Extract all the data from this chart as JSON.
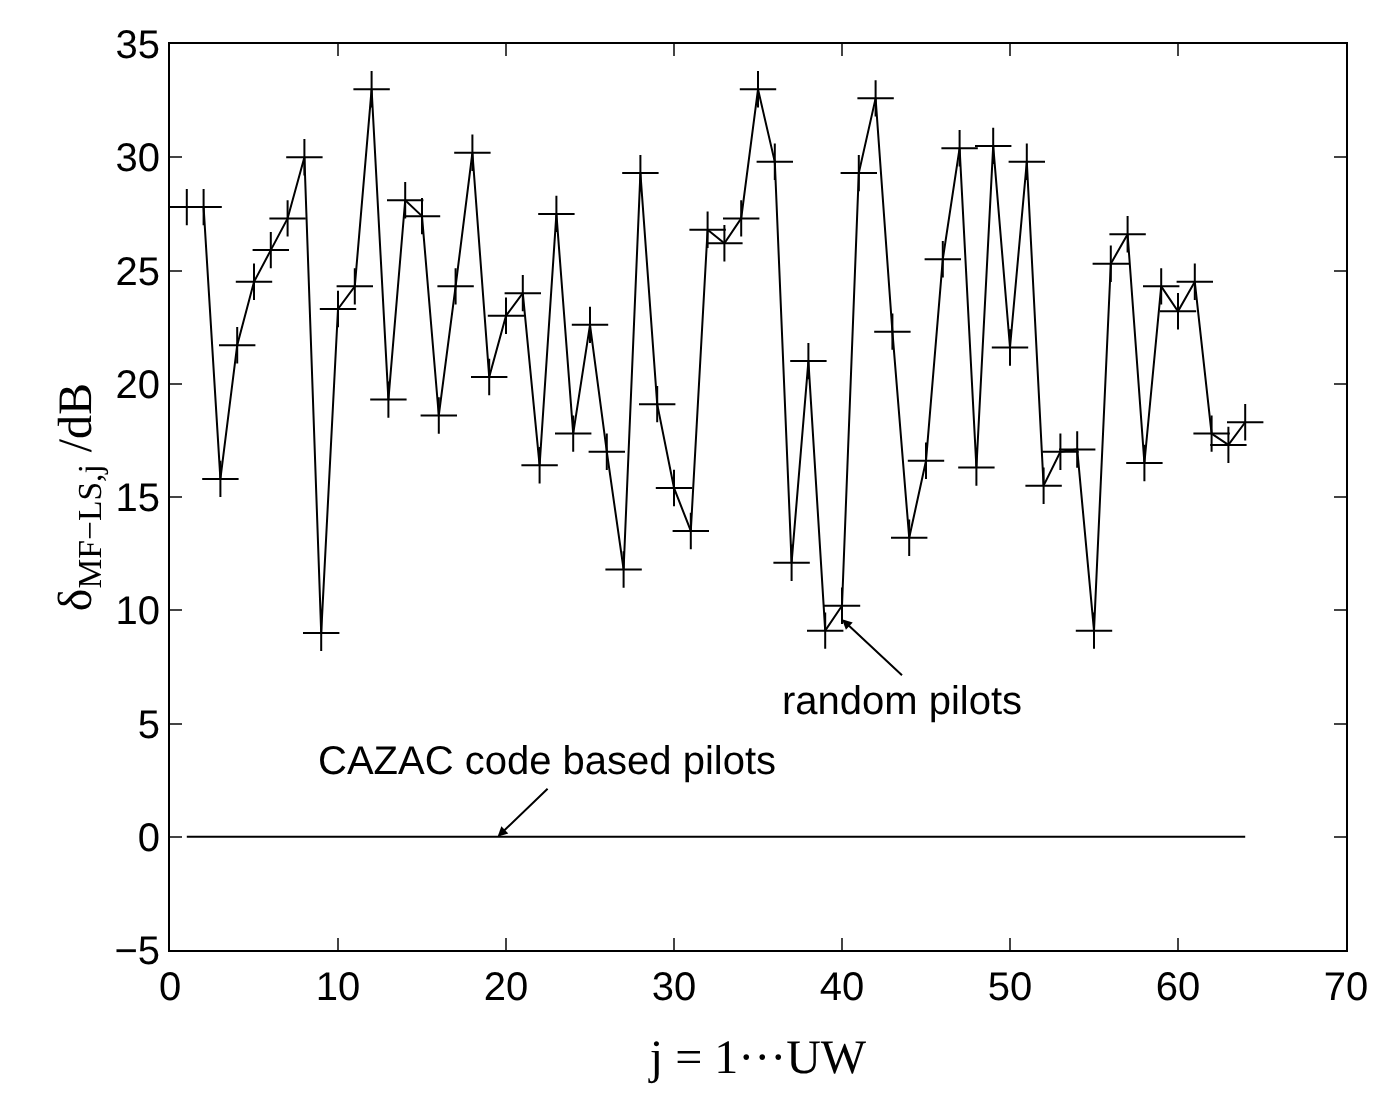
{
  "chart_data": {
    "type": "line",
    "xlabel": "j = 1···UW",
    "ylabel": "δ$_{MF−LS,j}$ /dB",
    "xlim": [
      0,
      70
    ],
    "xticks": [
      0,
      10,
      20,
      30,
      40,
      50,
      60,
      70
    ],
    "ylim": [
      -5,
      35
    ],
    "yticks": [
      -5,
      0,
      5,
      10,
      15,
      20,
      25,
      30,
      35
    ],
    "line_style": "solid",
    "series": [
      {
        "color": "#000000",
        "marker": "cross",
        "x": [
          1,
          2,
          3,
          4,
          5,
          6,
          7,
          8,
          9,
          10,
          11,
          12,
          13,
          14,
          15,
          16,
          17,
          18,
          19,
          20,
          21,
          22,
          23,
          24,
          25,
          26,
          27,
          28,
          29,
          30,
          31,
          32,
          33,
          34,
          35,
          36,
          37,
          38,
          39,
          40,
          41,
          42,
          43,
          44,
          45,
          46,
          47,
          48,
          49,
          50,
          51,
          52,
          53,
          54,
          55,
          56,
          57,
          58,
          59,
          60,
          61,
          62,
          63,
          64
        ],
        "values": [
          27.8,
          27.8,
          15.8,
          21.7,
          24.5,
          25.9,
          27.3,
          30.0,
          9.0,
          23.3,
          24.3,
          33.0,
          19.3,
          28.1,
          27.4,
          18.6,
          24.3,
          30.2,
          20.3,
          23.0,
          24.0,
          16.4,
          27.5,
          17.8,
          22.6,
          17.0,
          11.8,
          29.3,
          19.1,
          15.4,
          13.5,
          26.8,
          26.2,
          27.3,
          33.0,
          29.8,
          12.1,
          21.0,
          9.1,
          10.2,
          29.3,
          32.6,
          22.3,
          13.2,
          16.6,
          25.5,
          30.4,
          16.3,
          30.5,
          21.6,
          29.8,
          15.5,
          17.0,
          17.1,
          9.1,
          25.3,
          26.6,
          16.5,
          24.3,
          23.2,
          24.5,
          17.8,
          17.3,
          18.3
        ]
      },
      {
        "color": "#000000",
        "marker": "none",
        "x": [
          1,
          64
        ],
        "values": [
          0,
          0
        ]
      }
    ],
    "annotations": [
      {
        "text": "random pilots",
        "x": 40,
        "y": 9.6
      },
      {
        "text": "CAZAC code based pilots",
        "x": 19.5,
        "y": 0
      }
    ]
  }
}
